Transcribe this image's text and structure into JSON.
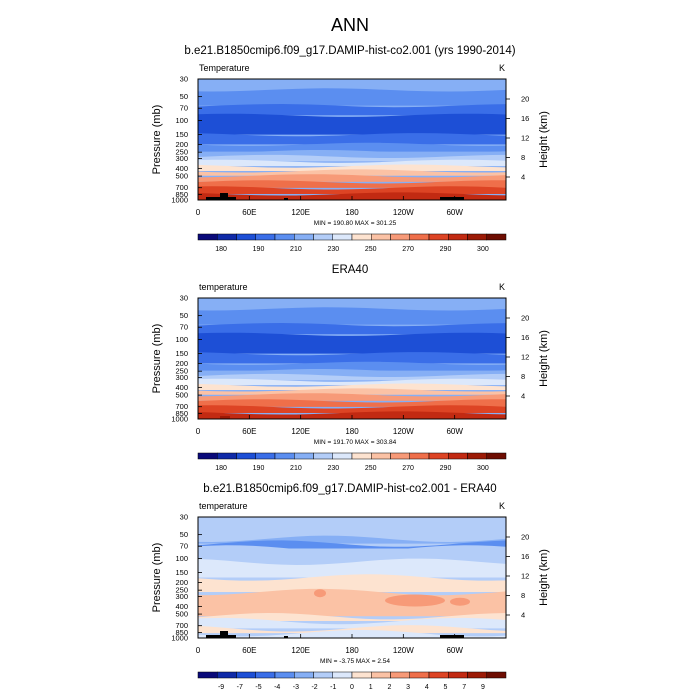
{
  "main_title": "ANN",
  "chart_data": [
    {
      "type": "heatmap",
      "title": "b.e21.B1850cmip6.f09_g17.DAMIP-hist-co2.001 (yrs 1990-2014)",
      "variable_label": "Temperature",
      "units": "K",
      "ylabel": "Pressure (mb)",
      "ylabel_right": "Height (km)",
      "y_ticks": [
        "30",
        "50",
        "70",
        "100",
        "150",
        "200",
        "250",
        "300",
        "400",
        "500",
        "700",
        "850",
        "1000"
      ],
      "y_right_ticks": [
        "20",
        "16",
        "12",
        "8",
        "4"
      ],
      "x_ticks": [
        "0",
        "60E",
        "120E",
        "180",
        "120W",
        "60W"
      ],
      "stats": "MIN = 190.80  MAX = 301.25",
      "min": 190.8,
      "max": 301.25,
      "colorbar_labels": [
        "180",
        "190",
        "210",
        "230",
        "250",
        "270",
        "290",
        "300"
      ],
      "colors": [
        "#0a0a7a",
        "#0f2aa8",
        "#1d4fd6",
        "#3a6ee8",
        "#5b8ef0",
        "#86aff5",
        "#b3cdf8",
        "#dce8fb",
        "#fde3d0",
        "#fbc2a5",
        "#f79a78",
        "#ef6f4a",
        "#dd4424",
        "#c22a12",
        "#9c1a06",
        "#6e0d02"
      ]
    },
    {
      "type": "heatmap",
      "title": "ERA40",
      "variable_label": "temperature",
      "units": "K",
      "ylabel": "Pressure (mb)",
      "ylabel_right": "Height (km)",
      "y_ticks": [
        "30",
        "50",
        "70",
        "100",
        "150",
        "200",
        "250",
        "300",
        "400",
        "500",
        "700",
        "850",
        "1000"
      ],
      "y_right_ticks": [
        "20",
        "16",
        "12",
        "8",
        "4"
      ],
      "x_ticks": [
        "0",
        "60E",
        "120E",
        "180",
        "120W",
        "60W"
      ],
      "stats": "MIN = 191.70  MAX = 303.84",
      "min": 191.7,
      "max": 303.84,
      "colorbar_labels": [
        "180",
        "190",
        "210",
        "230",
        "250",
        "270",
        "290",
        "300"
      ],
      "colors": [
        "#0a0a7a",
        "#0f2aa8",
        "#1d4fd6",
        "#3a6ee8",
        "#5b8ef0",
        "#86aff5",
        "#b3cdf8",
        "#dce8fb",
        "#fde3d0",
        "#fbc2a5",
        "#f79a78",
        "#ef6f4a",
        "#dd4424",
        "#c22a12",
        "#9c1a06",
        "#6e0d02"
      ]
    },
    {
      "type": "heatmap",
      "title": "b.e21.B1850cmip6.f09_g17.DAMIP-hist-co2.001 - ERA40",
      "variable_label": "temperature",
      "units": "K",
      "ylabel": "Pressure (mb)",
      "ylabel_right": "Height (km)",
      "y_ticks": [
        "30",
        "50",
        "70",
        "100",
        "150",
        "200",
        "250",
        "300",
        "400",
        "500",
        "700",
        "850",
        "1000"
      ],
      "y_right_ticks": [
        "20",
        "16",
        "12",
        "8",
        "4"
      ],
      "x_ticks": [
        "0",
        "60E",
        "120E",
        "180",
        "120W",
        "60W"
      ],
      "stats": "MIN = -3.75  MAX =  2.54",
      "min": -3.75,
      "max": 2.54,
      "colorbar_labels": [
        "-9",
        "-7",
        "-5",
        "-4",
        "-3",
        "-2",
        "-1",
        "0",
        "1",
        "2",
        "3",
        "4",
        "5",
        "7",
        "9"
      ],
      "colors": [
        "#0a0a7a",
        "#0f2aa8",
        "#1d4fd6",
        "#3a6ee8",
        "#5b8ef0",
        "#86aff5",
        "#b3cdf8",
        "#dce8fb",
        "#fde3d0",
        "#fbc2a5",
        "#f79a78",
        "#ef6f4a",
        "#dd4424",
        "#c22a12",
        "#9c1a06",
        "#6e0d02"
      ]
    }
  ]
}
